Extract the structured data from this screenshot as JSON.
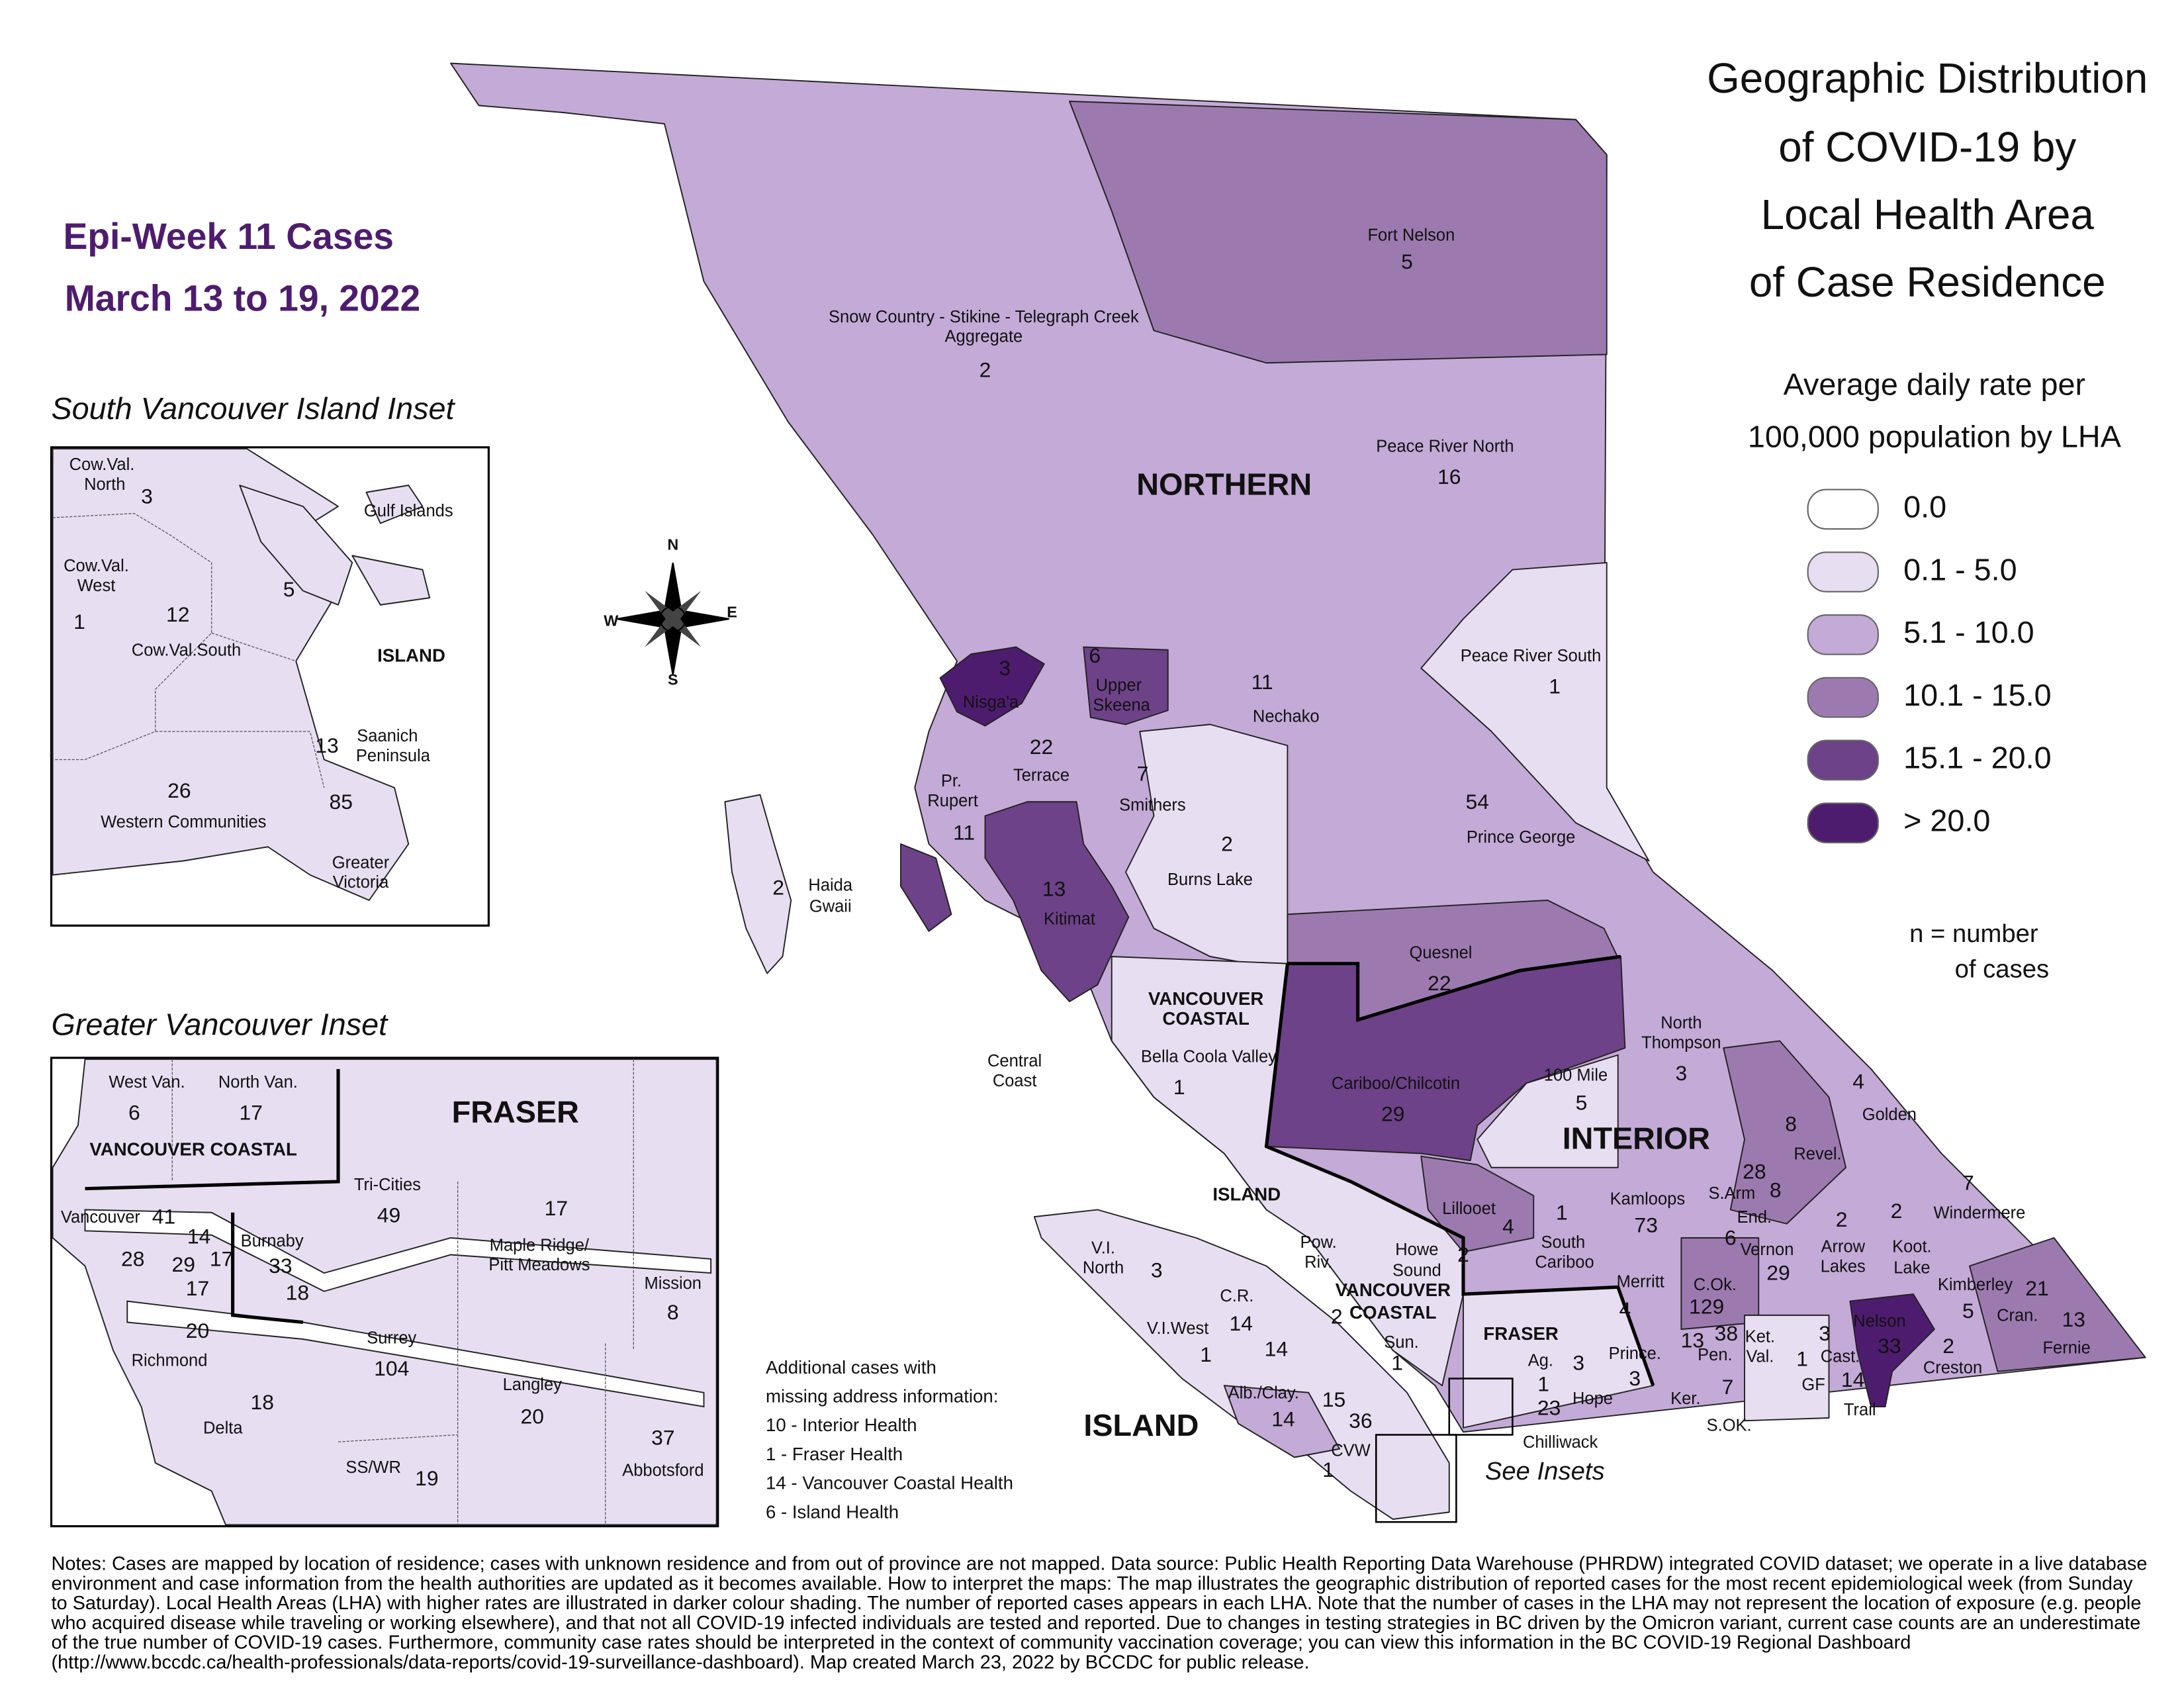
{
  "title": [
    "Geographic Distribution",
    "of COVID-19 by",
    "Local Health Area",
    "of Case Residence"
  ],
  "epi_week": "Epi-Week 11 Cases",
  "date_range": "March 13 to 19, 2022",
  "legend": {
    "heading": [
      "Average daily rate per",
      "100,000 population by LHA"
    ],
    "classes": [
      {
        "label": "0.0",
        "color": "#ffffff"
      },
      {
        "label": "0.1 - 5.0",
        "color": "#e8def1"
      },
      {
        "label": "5.1 - 10.0",
        "color": "#c4aad7"
      },
      {
        "label": "10.1 - 15.0",
        "color": "#9c7aaf"
      },
      {
        "label": "15.1 - 20.0",
        "color": "#6d4288"
      },
      {
        "label": "> 20.0",
        "color": "#4e1c6e"
      }
    ],
    "note": [
      "n = number",
      "of cases"
    ]
  },
  "compass": [
    "N",
    "E",
    "S",
    "W"
  ],
  "main_map": {
    "health_authorities": [
      [
        "NORTHERN"
      ],
      [
        "INTERIOR"
      ],
      [
        "VANCOUVER",
        "COASTAL"
      ],
      [
        "ISLAND"
      ],
      [
        "ISLAND"
      ],
      [
        "VANCOUVER",
        "COASTAL"
      ],
      [
        "FRASER"
      ]
    ],
    "see_insets": "See Insets",
    "regions": [
      {
        "name": [
          "Fort Nelson"
        ],
        "count": 5
      },
      {
        "name": [
          "Snow Country - Stikine - Telegraph Creek",
          "Aggregate"
        ],
        "count": 2
      },
      {
        "name": [
          "Peace River North"
        ],
        "count": 16
      },
      {
        "name": [
          "Peace River South"
        ],
        "count": 1
      },
      {
        "name": [
          "Nisga'a"
        ],
        "count": 3
      },
      {
        "name": [
          "Upper",
          "Skeena"
        ],
        "count": 6
      },
      {
        "name": [
          "Nechako"
        ],
        "count": 11
      },
      {
        "name": [
          "Terrace"
        ],
        "count": 22
      },
      {
        "name": [
          "Pr.",
          "Rupert"
        ],
        "count": 11
      },
      {
        "name": [
          "Smithers"
        ],
        "count": 7
      },
      {
        "name": [
          "Burns Lake"
        ],
        "count": 2
      },
      {
        "name": [
          "Prince George"
        ],
        "count": 54
      },
      {
        "name": [
          "Haida",
          "Gwaii"
        ],
        "count": 2
      },
      {
        "name": [
          "Kitimat"
        ],
        "count": 13
      },
      {
        "name": [
          "Quesnel"
        ],
        "count": 22
      },
      {
        "name": [
          "Central",
          "Coast"
        ]
      },
      {
        "name": [
          "Bella Coola Valley"
        ],
        "count": 1
      },
      {
        "name": [
          "North",
          "Thompson"
        ],
        "count": 3
      },
      {
        "name": [
          "Golden"
        ],
        "count": 4
      },
      {
        "name": [
          "100 Mile"
        ],
        "count": 5
      },
      {
        "name": [
          "Cariboo/Chilcotin"
        ],
        "count": 29
      },
      {
        "name": [
          "Revel."
        ],
        "count": 8
      },
      {
        "name": [
          "Windermere"
        ],
        "count": 7
      },
      {
        "name": [
          "Lillooet"
        ],
        "count": 4
      },
      {
        "name": [
          "S.Arm"
        ],
        "count": 28
      },
      {
        "name": [
          "End."
        ],
        "count": 8
      },
      {
        "name": [
          "Kamloops"
        ],
        "count": 73
      },
      {
        "name": [
          "South",
          "Cariboo"
        ],
        "count": 1
      },
      {
        "name": [
          "Vernon"
        ],
        "count": 29
      },
      {
        "count": 6
      },
      {
        "name": [
          "Arrow",
          "Lakes"
        ],
        "count": 2
      },
      {
        "name": [
          "Koot.",
          "Lake"
        ],
        "count": 2
      },
      {
        "name": [
          "Kimberley"
        ],
        "count": 5
      },
      {
        "name": [
          "Cran."
        ],
        "count": 21
      },
      {
        "name": [
          "Fernie"
        ],
        "count": 13
      },
      {
        "name": [
          "Merritt"
        ],
        "count": 4
      },
      {
        "name": [
          "C.Ok."
        ],
        "count": 129
      },
      {
        "name": [
          "Pen."
        ],
        "count": 38
      },
      {
        "count": 13
      },
      {
        "name": [
          "Ket.",
          "Val."
        ]
      },
      {
        "name": [
          "Nelson"
        ],
        "count": 33
      },
      {
        "name": [
          "Cast."
        ],
        "count": 3
      },
      {
        "name": [
          "GF"
        ],
        "count": 1
      },
      {
        "name": [
          "Prince."
        ],
        "count": 3
      },
      {
        "name": [
          "Ker."
        ]
      },
      {
        "name": [
          "S.OK."
        ],
        "count": 7
      },
      {
        "name": [
          "Trail"
        ],
        "count": 14
      },
      {
        "name": [
          "Creston"
        ],
        "count": 2
      },
      {
        "name": [
          "V.I.",
          "North"
        ],
        "count": 3
      },
      {
        "name": [
          "C.R."
        ],
        "count": 14
      },
      {
        "name": [
          "V.I.West"
        ],
        "count": 1
      },
      {
        "count": 14
      },
      {
        "name": [
          "Alb./Clay."
        ],
        "count": 14
      },
      {
        "count": 15
      },
      {
        "count": 36
      },
      {
        "name": [
          "CVW"
        ]
      },
      {
        "count": 1
      },
      {
        "name": [
          "Pow.",
          "Riv."
        ]
      },
      {
        "name": [
          "Howe",
          "Sound"
        ],
        "count": 2
      },
      {
        "count": 2
      },
      {
        "name": [
          "Sun."
        ],
        "count": 1
      },
      {
        "name": [
          "Ag."
        ],
        "count": 1
      },
      {
        "count": 3
      },
      {
        "name": [
          "Hope"
        ]
      },
      {
        "count": 23
      },
      {
        "name": [
          "Chilliwack"
        ]
      }
    ]
  },
  "south_island_inset": {
    "title": "South Vancouver Island Inset",
    "health_authorities": [
      [
        "ISLAND"
      ]
    ],
    "regions": [
      {
        "name": [
          "Cow.Val.",
          "North"
        ],
        "count": 3
      },
      {
        "name": [
          "Gulf Islands"
        ]
      },
      {
        "name": [
          "Cow.Val.",
          "West"
        ],
        "count": 1
      },
      {
        "name": [
          "Cow.Val.South"
        ],
        "count": 12
      },
      {
        "count": 5
      },
      {
        "name": [
          "Saanich",
          "Peninsula"
        ],
        "count": 13
      },
      {
        "name": [
          "Western Communities"
        ],
        "count": 26
      },
      {
        "name": [
          "Greater",
          "Victoria"
        ],
        "count": 85
      }
    ]
  },
  "vancouver_inset": {
    "title": "Greater Vancouver Inset",
    "health_authorities": [
      [
        "FRASER"
      ],
      [
        "VANCOUVER COASTAL"
      ]
    ],
    "regions": [
      {
        "name": [
          "West Van."
        ],
        "count": 6
      },
      {
        "name": [
          "North Van."
        ],
        "count": 17
      },
      {
        "name": [
          "Tri-Cities"
        ],
        "count": 49
      },
      {
        "name": [
          "Maple Ridge/",
          "Pitt Meadows"
        ],
        "count": 17
      },
      {
        "name": [
          "Vancouver"
        ],
        "count": 41
      },
      {
        "count": 14
      },
      {
        "count": 29
      },
      {
        "count": 17
      },
      {
        "count": 28
      },
      {
        "count": 17
      },
      {
        "name": [
          "Burnaby"
        ],
        "count": 33
      },
      {
        "count": 18
      },
      {
        "name": [
          "Mission"
        ],
        "count": 8
      },
      {
        "name": [
          "Richmond"
        ],
        "count": 20
      },
      {
        "name": [
          "Surrey"
        ],
        "count": 104
      },
      {
        "name": [
          "Langley"
        ],
        "count": 20
      },
      {
        "name": [
          "Delta"
        ],
        "count": 18
      },
      {
        "name": [
          "Abbotsford"
        ],
        "count": 37
      },
      {
        "name": [
          "SS/WR"
        ],
        "count": 19
      }
    ]
  },
  "additional_cases": {
    "heading": [
      "Additional cases with",
      "missing address information:"
    ],
    "items": [
      "10 - Interior Health",
      "1 -  Fraser Health",
      "14 - Vancouver Coastal Health",
      "6 - Island Health"
    ]
  },
  "notes": "Notes: Cases are mapped by location of residence; cases with unknown residence and from out of province are not mapped. Data source: Public Health Reporting Data Warehouse (PHRDW) integrated COVID dataset; we operate in a live database environment and case information from the health authorities are updated as it becomes available. How to interpret the maps: The map illustrates the geographic distribution of reported cases for the most recent epidemiological week (from Sunday to Saturday). Local Health Areas (LHA) with higher rates are illustrated in darker colour shading. The number of reported cases appears in each LHA. Note that the number of cases in the LHA may not represent the location of exposure (e.g. people who acquired disease while traveling or working elsewhere), and that not all COVID-19 infected individuals are tested and reported. Due to changes in testing strategies in BC driven by the Omicron variant, current case counts are an underestimate of the true number of COVID-19 cases. Furthermore, community case rates should be interpreted in the context of community vaccination coverage; you can view this information in the BC COVID-19 Regional Dashboard (http://www.bccdc.ca/health-professionals/data-reports/covid-19-surveillance-dashboard). Map created March 23, 2022 by BCCDC for public release."
}
